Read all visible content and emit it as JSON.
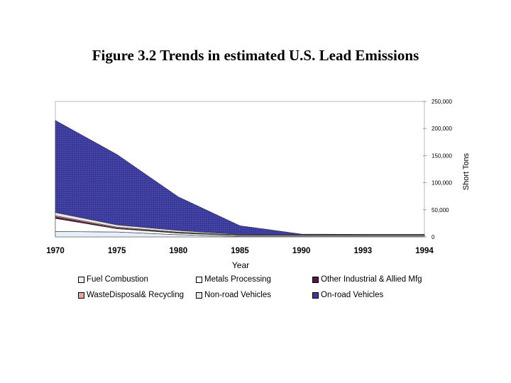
{
  "chart_data": {
    "type": "area",
    "title": "Figure 3.2 Trends in estimated U.S. Lead Emissions",
    "xlabel": "Year",
    "ylabel": "Short Tons",
    "categories": [
      "1970",
      "1975",
      "1980",
      "1985",
      "1990",
      "1993",
      "1994"
    ],
    "ylim": [
      0,
      250000
    ],
    "yticks": [
      "0",
      "50,000",
      "100,000",
      "150,000",
      "200,000",
      "250,000"
    ],
    "stacked": true,
    "series": [
      {
        "name": "Fuel Combustion",
        "values": [
          10000,
          9000,
          4000,
          500,
          500,
          500,
          500
        ],
        "color": "#e6f0f8"
      },
      {
        "name": "Metals Processing",
        "values": [
          24000,
          6000,
          3000,
          2000,
          2000,
          2000,
          2000
        ],
        "color": "#ffffff"
      },
      {
        "name": "Other Industrial & Allied Mfg",
        "values": [
          3000,
          1500,
          800,
          300,
          200,
          200,
          200
        ],
        "color": "#5a1446"
      },
      {
        "name": "WasteDisposal& Recycling",
        "values": [
          2000,
          1600,
          1000,
          900,
          800,
          800,
          800
        ],
        "color": "#f0a0a0"
      },
      {
        "name": "Non-road Vehicles",
        "values": [
          6000,
          4000,
          3000,
          900,
          300,
          200,
          200
        ],
        "color": "#e8e8e8"
      },
      {
        "name": "On-road Vehicles",
        "values": [
          170000,
          130000,
          62000,
          16000,
          1500,
          1000,
          1000
        ],
        "color": "#3a3a9c"
      }
    ],
    "legend_position": "bottom",
    "grid": false
  }
}
